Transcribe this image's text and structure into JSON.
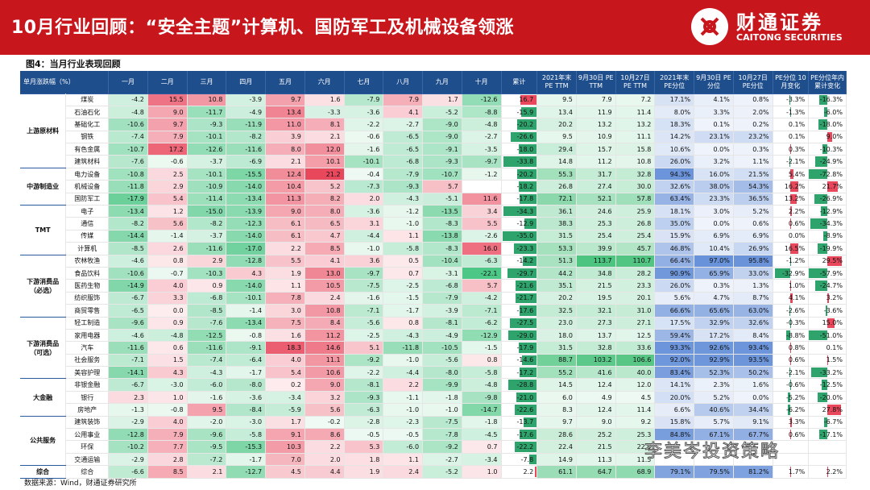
{
  "header": {
    "title": "10月行业回顾：“安全主题”计算机、国防军工及机械设备领涨",
    "logo_cn": "财通证券",
    "logo_en": "CAITONG SECURITIES",
    "logo_icon": "caitong-logo-icon"
  },
  "figure_title": "图4：当月行业表现回顾",
  "source": "数据来源：Wind，财通证券研究所",
  "watermark": "李美岑投资策略",
  "columns": [
    "单月涨跌幅（%）",
    "",
    "一月",
    "二月",
    "三月",
    "四月",
    "五月",
    "六月",
    "七月",
    "八月",
    "九月",
    "十月",
    "累计",
    "2021年末 PE TTM",
    "9月30日 PE TTM",
    "10月27日 PE TTM",
    "2021年末 PE分位",
    "9月30日 PE分位",
    "10月27日 PE分位",
    "PE分位 10月变化",
    "PE分位年内 累计变化"
  ],
  "colors": {
    "header_bg": "#c8161d",
    "table_header": "#1f4e8c",
    "pos": "#e9485c",
    "neg": "#2ea36b",
    "blue": "#5b86d1"
  },
  "groups": [
    {
      "name": "上游原材料",
      "rows": [
        {
          "ind": "煤炭",
          "vals": [
            "-4.2",
            "15.5",
            "10.8",
            "-3.9",
            "9.7",
            "1.6",
            "-7.9",
            "7.9",
            "1.7",
            "-12.6",
            "16.7",
            "9.5",
            "7.9",
            "7.2",
            "17.1%",
            "4.1%",
            "0.8%",
            "-3.3%",
            "-16.3%"
          ]
        },
        {
          "ind": "石油石化",
          "vals": [
            "-4.8",
            "9.0",
            "-11.7",
            "-4.9",
            "13.4",
            "-3.3",
            "-3.6",
            "4.1",
            "-5.2",
            "-8.8",
            "-15.9",
            "13.4",
            "11.9",
            "11.4",
            "8.0%",
            "3.3%",
            "2.0%",
            "-1.3%",
            "-6.0%"
          ]
        },
        {
          "ind": "基础化工",
          "vals": [
            "-10.6",
            "9.7",
            "-9.3",
            "-11.9",
            "11.0",
            "8.1",
            "-2.2",
            "-2.7",
            "-9.0",
            "-4.8",
            "-20.2",
            "20.2",
            "13.2",
            "13.2",
            "18.3%",
            "0.1%",
            "0.2%",
            "0.1%",
            "-18.0%"
          ]
        },
        {
          "ind": "钢铁",
          "vals": [
            "-7.4",
            "7.9",
            "-10.1",
            "-8.2",
            "3.9",
            "2.1",
            "-0.6",
            "-6.5",
            "-9.0",
            "-2.7",
            "-26.6",
            "9.5",
            "10.9",
            "11.1",
            "14.2%",
            "23.1%",
            "23.2%",
            "0.1%",
            "9.0%"
          ]
        },
        {
          "ind": "有色金属",
          "vals": [
            "-10.7",
            "17.2",
            "-12.6",
            "-11.6",
            "8.0",
            "12.0",
            "-1.6",
            "-6.5",
            "-9.1",
            "-3.5",
            "-18.0",
            "29.4",
            "15.7",
            "15.8",
            "10.6%",
            "0.0%",
            "0.3%",
            "0.3%",
            "-10.3%"
          ]
        },
        {
          "ind": "建筑材料",
          "vals": [
            "-7.6",
            "-0.6",
            "-3.7",
            "-6.9",
            "2.1",
            "10.1",
            "-10.1",
            "-6.8",
            "-9.3",
            "-9.7",
            "-33.8",
            "14.8",
            "11.2",
            "10.8",
            "26.0%",
            "3.2%",
            "1.1%",
            "-2.1%",
            "-24.9%"
          ]
        }
      ]
    },
    {
      "name": "中游制造业",
      "rows": [
        {
          "ind": "电力设备",
          "vals": [
            "-10.8",
            "2.5",
            "-10.1",
            "-15.5",
            "12.4",
            "21.2",
            "-0.4",
            "-7.9",
            "-10.7",
            "-1.2",
            "-20.2",
            "55.3",
            "31.7",
            "32.8",
            "94.3%",
            "16.0%",
            "21.5%",
            "5.4%",
            "-72.8%"
          ]
        },
        {
          "ind": "机械设备",
          "vals": [
            "-11.8",
            "2.9",
            "-10.9",
            "-14.0",
            "10.4",
            "5.2",
            "-7.3",
            "-9.3",
            "5.7",
            "",
            "-18.2",
            "26.8",
            "27.4",
            "30.0",
            "32.6%",
            "38.0%",
            "54.3%",
            "16.2%",
            "21.7%"
          ]
        },
        {
          "ind": "国防军工",
          "vals": [
            "-17.9",
            "5.4",
            "-11.4",
            "-13.4",
            "11.3",
            "8.2",
            "2.0",
            "-4.3",
            "-5.1",
            "11.6",
            "-17.8",
            "72.1",
            "52.1",
            "57.8",
            "63.4%",
            "23.3%",
            "36.5%",
            "13.2%",
            "-26.9%"
          ]
        }
      ]
    },
    {
      "name": "TMT",
      "rows": [
        {
          "ind": "电子",
          "vals": [
            "-13.4",
            "1.2",
            "-15.0",
            "-13.9",
            "9.0",
            "8.0",
            "-3.6",
            "-1.2",
            "-13.5",
            "3.4",
            "-34.3",
            "36.1",
            "24.6",
            "25.9",
            "18.1%",
            "3.0%",
            "5.2%",
            "2.2%",
            "-12.9%"
          ]
        },
        {
          "ind": "通信",
          "vals": [
            "-8.2",
            "5.6",
            "-8.2",
            "-12.3",
            "6.1",
            "6.5",
            "3.1",
            "-1.0",
            "-8.3",
            "5.5",
            "-12.9",
            "38.3",
            "25.3",
            "26.8",
            "35.0%",
            "0.0%",
            "0.6%",
            "0.6%",
            "-34.3%"
          ]
        },
        {
          "ind": "传媒",
          "vals": [
            "-14.4",
            "-1.4",
            "-3.7",
            "-14.0",
            "6.1",
            "4.7",
            "-4.4",
            "1.1",
            "-13.8",
            "-2.6",
            "-35.0",
            "31.5",
            "25.4",
            "25.4",
            "15.9%",
            "6.9%",
            "6.9%",
            "0.0%",
            "-8.9%"
          ]
        },
        {
          "ind": "计算机",
          "vals": [
            "-8.5",
            "2.6",
            "-11.6",
            "-17.0",
            "2.2",
            "8.5",
            "-1.0",
            "-5.8",
            "-8.3",
            "16.0",
            "-23.3",
            "53.3",
            "39.9",
            "45.7",
            "46.8%",
            "10.4%",
            "26.9%",
            "16.5%",
            "-19.9%"
          ]
        }
      ]
    },
    {
      "name": "下游消费品 （必选）",
      "rows": [
        {
          "ind": "农林牧渔",
          "vals": [
            "-4.6",
            "0.8",
            "2.9",
            "-12.8",
            "5.5",
            "4.1",
            "3.6",
            "0.5",
            "-10.4",
            "-6.3",
            "-14.2",
            "51.3",
            "113.7",
            "110.7",
            "66.4%",
            "97.0%",
            "95.8%",
            "-1.2%",
            "29.5%"
          ]
        },
        {
          "ind": "食品饮料",
          "vals": [
            "-10.6",
            "-0.7",
            "-10.3",
            "4.3",
            "1.9",
            "13.0",
            "-9.7",
            "0.7",
            "-3.1",
            "-22.1",
            "-29.7",
            "44.2",
            "34.8",
            "28.2",
            "90.9%",
            "65.9%",
            "33.0%",
            "-32.9%",
            "-57.9%"
          ]
        },
        {
          "ind": "医药生物",
          "vals": [
            "-14.9",
            "4.0",
            "0.9",
            "-14.0",
            "1.1",
            "10.5",
            "-7.5",
            "-2.5",
            "-6.8",
            "5.7",
            "-21.6",
            "35.1",
            "21.5",
            "23.3",
            "26.0%",
            "0.3%",
            "1.3%",
            "1.0%",
            "-24.7%"
          ]
        },
        {
          "ind": "纺织服饰",
          "vals": [
            "-6.7",
            "3.3",
            "-6.8",
            "-10.1",
            "7.8",
            "2.4",
            "-1.6",
            "-1.5",
            "-7.9",
            "-4.2",
            "-21.7",
            "20.2",
            "19.5",
            "20.1",
            "5.6%",
            "4.7%",
            "8.7%",
            "4.1%",
            "3.2%"
          ]
        },
        {
          "ind": "商贸零售",
          "vals": [
            "-6.5",
            "0.0",
            "-8.5",
            "-1.4",
            "3.0",
            "10.8",
            "-7.1",
            "-1.7",
            "-3.9",
            "-7.1",
            "-17.6",
            "32.5",
            "32.1",
            "31.0",
            "66.6%",
            "65.6%",
            "63.0%",
            "-2.6%",
            "-3.6%"
          ]
        }
      ]
    },
    {
      "name": "下游消费品 （可选）",
      "rows": [
        {
          "ind": "轻工制造",
          "vals": [
            "-9.6",
            "0.9",
            "-7.6",
            "-13.4",
            "7.5",
            "8.4",
            "-5.6",
            "0.8",
            "-8.1",
            "-6.2",
            "-27.5",
            "23.0",
            "27.3",
            "27.1",
            "17.5%",
            "32.9%",
            "32.6%",
            "-0.3%",
            "15.0%"
          ]
        },
        {
          "ind": "家用电器",
          "vals": [
            "-4.6",
            "-4.8",
            "-12.5",
            "-0.8",
            "1.6",
            "11.2",
            "-2.5",
            "-4.3",
            "-4.9",
            "-12.9",
            "-29.0",
            "18.0",
            "13.7",
            "12.5",
            "59.4%",
            "17.2%",
            "8.4%",
            "-8.8%",
            "-51.0%"
          ]
        },
        {
          "ind": "汽车",
          "vals": [
            "-11.6",
            "0.6",
            "-11.6",
            "-9.1",
            "18.3",
            "14.6",
            "5.1",
            "-11.8",
            "-10.5",
            "-1.5",
            "-17.9",
            "31.5",
            "32.8",
            "33.6",
            "93.3%",
            "92.6%",
            "93.4%",
            "0.8%",
            "0.1%"
          ]
        },
        {
          "ind": "社会服务",
          "vals": [
            "-7.1",
            "1.5",
            "-7.4",
            "-6.4",
            "4.0",
            "11.1",
            "-9.2",
            "-1.0",
            "-5.6",
            "0.8",
            "-14.6",
            "88.7",
            "103.2",
            "106.6",
            "92.0%",
            "92.9%",
            "93.5%",
            "0.6%",
            "1.5%"
          ]
        },
        {
          "ind": "美容护理",
          "vals": [
            "-14.1",
            "4.3",
            "-4.3",
            "-1.7",
            "5.4",
            "10.6",
            "-2.2",
            "-4.4",
            "-8.0",
            "-5.8",
            "-17.2",
            "55.2",
            "41.6",
            "40.0",
            "83.4%",
            "52.3%",
            "50.2%",
            "-2.1%",
            "-33.2%"
          ]
        }
      ]
    },
    {
      "name": "大金融",
      "rows": [
        {
          "ind": "非银金融",
          "vals": [
            "-6.7",
            "-3.0",
            "-6.0",
            "-8.0",
            "0.2",
            "9.0",
            "-8.1",
            "2.2",
            "-9.9",
            "-4.8",
            "-28.8",
            "14.5",
            "12.4",
            "12.0",
            "14.1%",
            "2.3%",
            "1.6%",
            "-0.6%",
            "-12.5%"
          ]
        },
        {
          "ind": "银行",
          "vals": [
            "2.3",
            "1.0",
            "-1.6",
            "-3.6",
            "-3.4",
            "3.2",
            "-9.3",
            "-1.1",
            "-1.8",
            "-9.8",
            "-21.0",
            "6.0",
            "4.9",
            "4.5",
            "20.0%",
            "5.2%",
            "0.0%",
            "-5.2%",
            "-20.0%"
          ]
        },
        {
          "ind": "房地产",
          "vals": [
            "-1.3",
            "-0.8",
            "9.5",
            "-8.4",
            "-5.9",
            "5.6",
            "-6.3",
            "-1.0",
            "-1.0",
            "-14.7",
            "-22.6",
            "8.3",
            "12.4",
            "11.4",
            "6.6%",
            "40.6%",
            "34.4%",
            "-6.2%",
            "27.8%"
          ]
        }
      ]
    },
    {
      "name": "公共服务",
      "rows": [
        {
          "ind": "建筑装饰",
          "vals": [
            "-2.9",
            "4.0",
            "-2.0",
            "-3.0",
            "1.7",
            "-0.2",
            "-2.8",
            "-2.3",
            "-7.5",
            "-1.8",
            "-13.7",
            "9.7",
            "9.0",
            "9.2",
            "15.8%",
            "5.7%",
            "9.1%",
            "3.3%",
            "-6.7%"
          ]
        },
        {
          "ind": "公用事业",
          "vals": [
            "-12.8",
            "7.9",
            "-9.6",
            "-5.8",
            "9.1",
            "8.6",
            "-0.5",
            "-0.5",
            "-7.8",
            "-4.5",
            "-17.6",
            "28.6",
            "25.2",
            "25.3",
            "84.8%",
            "67.1%",
            "67.7%",
            "0.6%",
            "-17.1%"
          ]
        },
        {
          "ind": "环保",
          "vals": [
            "-10.2",
            "7.7",
            "-9.5",
            "-15.3",
            "10.3",
            "2.2",
            "5.3",
            "-6.0",
            "-9.2",
            "0.7",
            "-22.2",
            "22.4",
            "21.5",
            "22.0",
            "",
            "",
            "",
            "",
            ""
          ]
        },
        {
          "ind": "交通运输",
          "vals": [
            "-2.9",
            "2.8",
            "-7.2",
            "-1.7",
            "7.0",
            "2.0",
            "1.8",
            "1.1",
            "-2.7",
            "-3.4",
            "-7.8",
            "14.9",
            "11.3",
            "11.5",
            "",
            "",
            "",
            "",
            ""
          ]
        }
      ]
    },
    {
      "name": "综合",
      "rows": [
        {
          "ind": "综合",
          "vals": [
            "-6.6",
            "8.5",
            "2.1",
            "-12.7",
            "4.5",
            "4.4",
            "1.9",
            "2.4",
            "-5.2",
            "1.0",
            "2.2",
            "61.1",
            "64.7",
            "68.9",
            "79.1%",
            "79.5%",
            "81.2%",
            "1.7%",
            "2.2%"
          ]
        }
      ]
    }
  ]
}
